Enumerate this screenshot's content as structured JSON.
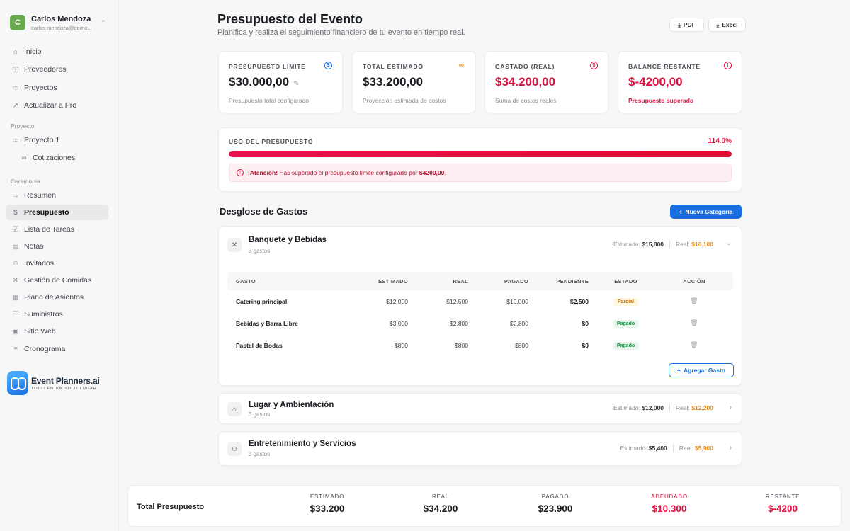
{
  "user": {
    "initial": "C",
    "name": "Carlos Mendoza",
    "email": "carlos.mendoza@demo..."
  },
  "nav": {
    "main": [
      {
        "label": "Inicio",
        "icon": "home-icon"
      },
      {
        "label": "Proveedores",
        "icon": "box-icon"
      },
      {
        "label": "Proyectos",
        "icon": "folders-icon"
      },
      {
        "label": "Actualizar a Pro",
        "icon": "rocket-icon"
      }
    ],
    "project_section": "Proyecto",
    "project": [
      {
        "label": "Proyecto 1",
        "icon": "folder-icon"
      },
      {
        "label": "Cotizaciones",
        "icon": "link-icon"
      }
    ],
    "ceremony_section": "Ceremonia",
    "ceremony": [
      {
        "label": "Resumen",
        "icon": "arrow-icon"
      },
      {
        "label": "Presupuesto",
        "icon": "dollar-icon"
      },
      {
        "label": "Lista de Tareas",
        "icon": "checkbox-icon"
      },
      {
        "label": "Notas",
        "icon": "note-icon"
      },
      {
        "label": "Invitados",
        "icon": "user-icon"
      },
      {
        "label": "Gestión de Comidas",
        "icon": "utensils-icon"
      },
      {
        "label": "Plano de Asientos",
        "icon": "grid-icon"
      },
      {
        "label": "Suministros",
        "icon": "list-icon"
      },
      {
        "label": "Sitio Web",
        "icon": "browser-icon"
      },
      {
        "label": "Cronograma",
        "icon": "timeline-icon"
      }
    ]
  },
  "brand": {
    "name": "Event Planners.ai",
    "tagline": "TODO EN UN SOLO LUGAR"
  },
  "header": {
    "title": "Presupuesto del Evento",
    "subtitle": "Planifica y realiza el seguimiento financiero de tu evento en tiempo real.",
    "pdf_label": "PDF",
    "excel_label": "Excel"
  },
  "stats": [
    {
      "label": "PRESUPUESTO LÍMITE",
      "value": "$30.000,00",
      "note": "Presupuesto total configurado",
      "icon_color": "#1a6fe0"
    },
    {
      "label": "TOTAL ESTIMADO",
      "value": "$33.200,00",
      "note": "Proyección estimada de costos",
      "icon_color": "#e98a15"
    },
    {
      "label": "GASTADO (REAL)",
      "value": "$34.200,00",
      "note": "Suma de costos reales",
      "icon_color": "#e0103f"
    },
    {
      "label": "BALANCE RESTANTE",
      "value": "$-4200,00",
      "note": "Presupuesto superado",
      "icon_color": "#e0103f"
    }
  ],
  "usage": {
    "label": "USO DEL PRESUPUESTO",
    "percent_text": "114.0%",
    "fill_fraction": 1.0,
    "alert_strong": "¡Atención!",
    "alert_text": " Has superado el presupuesto límite configurado por ",
    "alert_amount": "$4200,00",
    "alert_end": "."
  },
  "breakdown": {
    "title": "Desglose de Gastos",
    "new_category_label": "Nueva Categoría",
    "estimated_prefix": "Estimado:",
    "real_prefix": "Real:",
    "columns": [
      "GASTO",
      "ESTIMADO",
      "REAL",
      "PAGADO",
      "PENDIENTE",
      "ESTADO",
      "ACCIÓN"
    ],
    "add_expense_label": "Agregar Gasto",
    "categories": [
      {
        "name": "Banquete y Bebidas",
        "count": "3 gastos",
        "estimated": "$15,800",
        "real": "$16,100",
        "rows": [
          {
            "name": "Catering principal",
            "estimated": "$12,000",
            "real": "$12,500",
            "paid": "$10,000",
            "pending": "$2,500",
            "state": "Parcial"
          },
          {
            "name": "Bebidas y Barra Libre",
            "estimated": "$3,000",
            "real": "$2,800",
            "paid": "$2,800",
            "pending": "$0",
            "state": "Pagado"
          },
          {
            "name": "Pastel de Bodas",
            "estimated": "$800",
            "real": "$800",
            "paid": "$800",
            "pending": "$0",
            "state": "Pagado"
          }
        ]
      },
      {
        "name": "Lugar y Ambientación",
        "count": "3 gastos",
        "estimated": "$12,000",
        "real": "$12,200"
      },
      {
        "name": "Entretenimiento y Servicios",
        "count": "3 gastos",
        "estimated": "$5,400",
        "real": "$5,900"
      }
    ]
  },
  "footer": {
    "title": "Total Presupuesto",
    "columns": [
      {
        "label": "ESTIMADO",
        "value": "$33.200"
      },
      {
        "label": "REAL",
        "value": "$34.200"
      },
      {
        "label": "PAGADO",
        "value": "$23.900"
      },
      {
        "label": "ADEUDADO",
        "value": "$10.300"
      },
      {
        "label": "RESTANTE",
        "value": "$-4200"
      }
    ]
  }
}
